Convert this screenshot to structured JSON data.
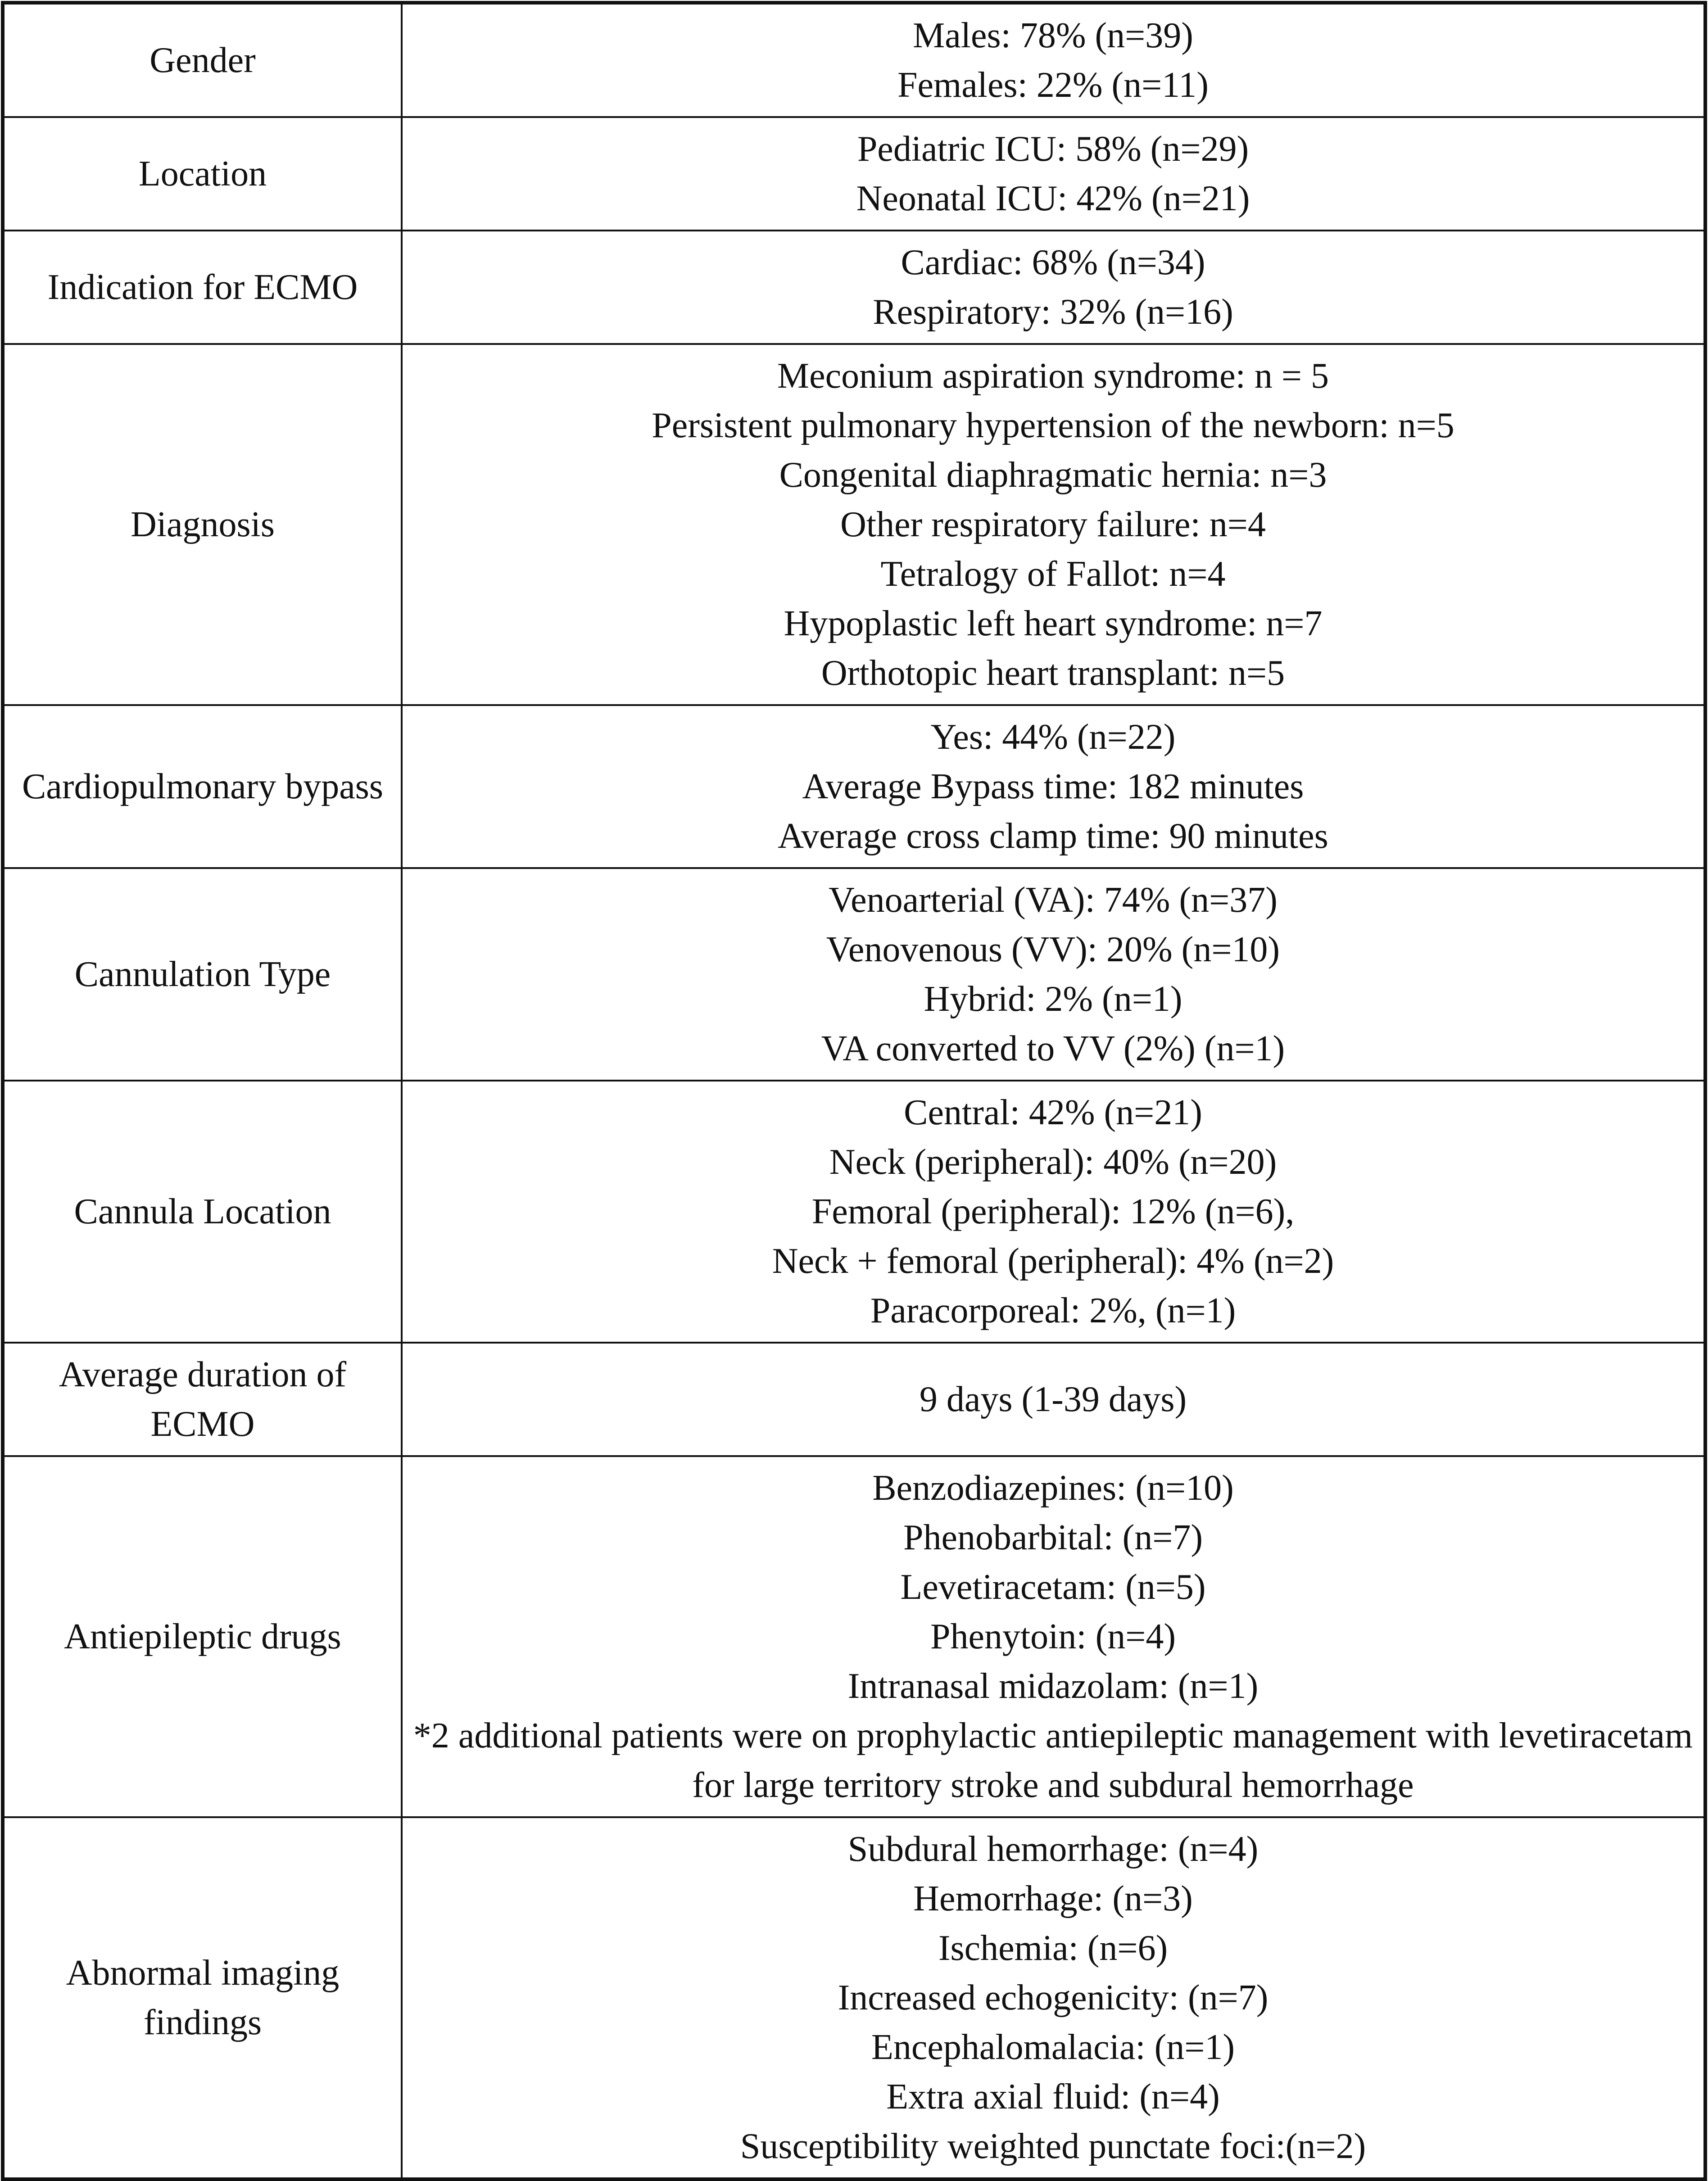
{
  "table": {
    "rows": [
      {
        "label": "Gender",
        "lines": [
          "Males: 78% (n=39)",
          "Females: 22% (n=11)"
        ]
      },
      {
        "label": "Location",
        "lines": [
          "Pediatric ICU: 58% (n=29)",
          "Neonatal ICU: 42% (n=21)"
        ]
      },
      {
        "label": "Indication for ECMO",
        "lines": [
          "Cardiac: 68% (n=34)",
          "Respiratory: 32% (n=16)"
        ]
      },
      {
        "label": "Diagnosis",
        "lines": [
          "Meconium aspiration syndrome: n = 5",
          "Persistent pulmonary hypertension of the newborn: n=5",
          "Congenital diaphragmatic hernia: n=3",
          "Other respiratory failure: n=4",
          "Tetralogy of Fallot: n=4",
          "Hypoplastic left heart syndrome: n=7",
          "Orthotopic heart transplant: n=5"
        ]
      },
      {
        "label": "Cardiopulmonary bypass",
        "lines": [
          "Yes: 44% (n=22)",
          "Average Bypass time: 182 minutes",
          "Average cross clamp time: 90 minutes"
        ]
      },
      {
        "label": "Cannulation Type",
        "lines": [
          "Venoarterial (VA): 74% (n=37)",
          "Venovenous (VV): 20% (n=10)",
          "Hybrid: 2% (n=1)",
          "VA converted to VV (2%) (n=1)"
        ]
      },
      {
        "label": "Cannula Location",
        "lines": [
          "Central: 42% (n=21)",
          "Neck (peripheral): 40% (n=20)",
          "Femoral (peripheral): 12% (n=6),",
          "Neck + femoral (peripheral): 4% (n=2)",
          "Paracorporeal: 2%, (n=1)"
        ]
      },
      {
        "label": "Average duration of ECMO",
        "lines": [
          "9 days (1-39 days)"
        ]
      },
      {
        "label": "Antiepileptic drugs",
        "lines": [
          "Benzodiazepines: (n=10)",
          "Phenobarbital: (n=7)",
          "Levetiracetam: (n=5)",
          "Phenytoin: (n=4)",
          "Intranasal midazolam: (n=1)",
          "*2 additional patients were on prophylactic antiepileptic management with levetiracetam for large territory stroke and subdural hemorrhage"
        ]
      },
      {
        "label": "Abnormal imaging findings",
        "lines": [
          "Subdural hemorrhage: (n=4)",
          "Hemorrhage: (n=3)",
          "Ischemia: (n=6)",
          "Increased echogenicity: (n=7)",
          "Encephalomalacia: (n=1)",
          "Extra axial fluid: (n=4)",
          "Susceptibility weighted punctate foci:(n=2)"
        ]
      }
    ]
  }
}
